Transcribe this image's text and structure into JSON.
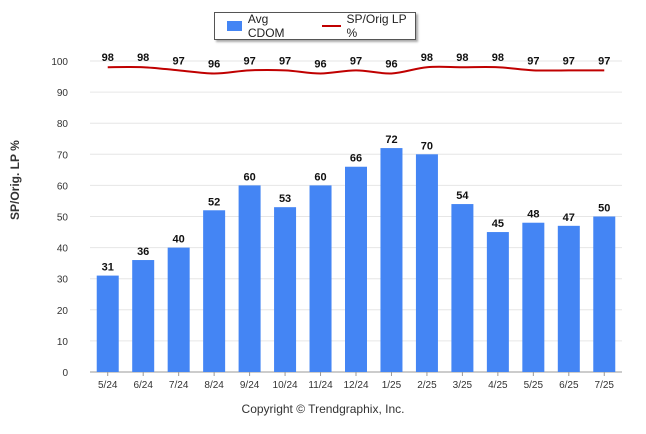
{
  "chart_data": {
    "type": "bar",
    "categories": [
      "5/24",
      "6/24",
      "7/24",
      "8/24",
      "9/24",
      "10/24",
      "11/24",
      "12/24",
      "1/25",
      "2/25",
      "3/25",
      "4/25",
      "5/25",
      "6/25",
      "7/25"
    ],
    "series": [
      {
        "name": "Avg CDOM",
        "type": "bar",
        "color": "#4485F4",
        "values": [
          31,
          36,
          40,
          52,
          60,
          53,
          60,
          66,
          72,
          70,
          54,
          45,
          48,
          47,
          50
        ]
      },
      {
        "name": "SP/Orig LP %",
        "type": "line",
        "color": "#C00000",
        "values": [
          98,
          98,
          97,
          96,
          97,
          97,
          96,
          97,
          96,
          98,
          98,
          98,
          97,
          97,
          97
        ]
      }
    ],
    "ylabel": "SP/Orig. LP %",
    "xlabel": "",
    "ylim": [
      0,
      100
    ],
    "yticks": [
      0,
      10,
      20,
      30,
      40,
      50,
      60,
      70,
      80,
      90,
      100
    ],
    "grid": true,
    "legend_position": "top-center"
  },
  "footer": {
    "copyright": "Copyright © Trendgraphix, Inc."
  }
}
